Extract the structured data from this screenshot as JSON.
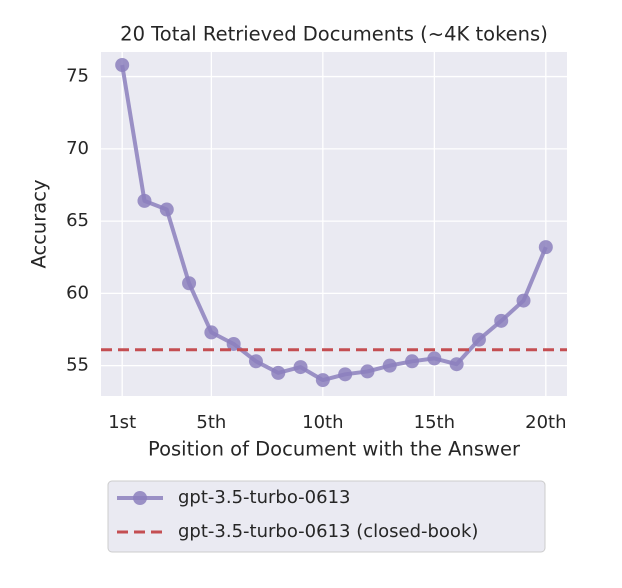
{
  "chart_data": {
    "type": "line",
    "title": "20 Total Retrieved Documents (~4K tokens)",
    "x_label": "Position of Document with the Answer",
    "y_label": "Accuracy",
    "x": [
      1,
      2,
      3,
      4,
      5,
      6,
      7,
      8,
      9,
      10,
      11,
      12,
      13,
      14,
      15,
      16,
      17,
      18,
      19,
      20
    ],
    "series": [
      {
        "name": "gpt-3.5-turbo-0613",
        "color": "#8c80bd",
        "values": [
          75.8,
          66.4,
          65.8,
          60.7,
          57.3,
          56.5,
          55.3,
          54.5,
          54.9,
          54.0,
          54.4,
          54.6,
          55.0,
          55.3,
          55.5,
          55.1,
          56.8,
          58.1,
          59.5,
          63.2
        ]
      }
    ],
    "reference_line": {
      "name": "gpt-3.5-turbo-0613 (closed-book)",
      "color": "#c44e52",
      "value": 56.1,
      "style": "dashed"
    },
    "xlim": [
      0.05,
      20.95
    ],
    "ylim": [
      52.9,
      76.7
    ],
    "xticks": [
      {
        "value": 1,
        "label": "1st"
      },
      {
        "value": 5,
        "label": "5th"
      },
      {
        "value": 10,
        "label": "10th"
      },
      {
        "value": 15,
        "label": "15th"
      },
      {
        "value": 20,
        "label": "20th"
      }
    ],
    "yticks": [
      55,
      60,
      65,
      70,
      75
    ],
    "grid": true,
    "legend": "below"
  }
}
